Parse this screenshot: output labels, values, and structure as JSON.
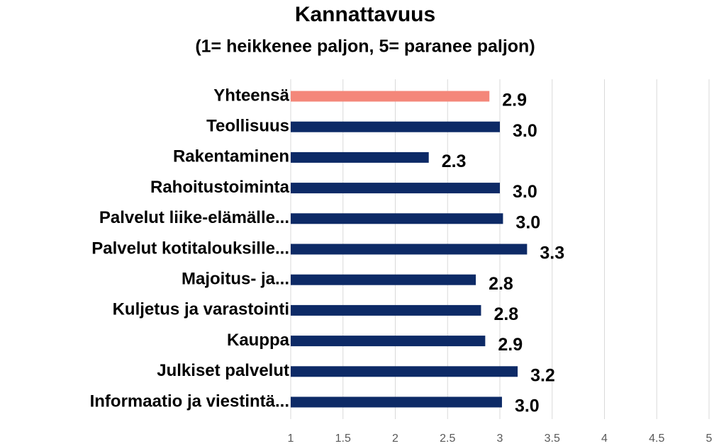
{
  "chart_data": {
    "type": "barh",
    "title": "Kannattavuus",
    "subtitle": "(1= heikkenee paljon, 5= paranee paljon)",
    "categories": [
      "Yhteensä",
      "Teollisuus",
      "Rakentaminen",
      "Rahoitustoiminta",
      "Palvelut liike-elämälle...",
      "Palvelut kotitalouksille...",
      "Majoitus- ja...",
      "Kuljetus ja varastointi",
      "Kauppa",
      "Julkiset palvelut",
      "Informaatio ja viestintä..."
    ],
    "values": [
      2.9,
      3.0,
      2.32,
      3.0,
      3.03,
      3.26,
      2.77,
      2.82,
      2.86,
      3.17,
      3.02
    ],
    "value_labels": [
      "2.9",
      "3.0",
      "2.3",
      "3.0",
      "3.0",
      "3.3",
      "2.8",
      "2.8",
      "2.9",
      "3.2",
      "3.0"
    ],
    "colors": [
      "#f4877a",
      "#0d2a66",
      "#0d2a66",
      "#0d2a66",
      "#0d2a66",
      "#0d2a66",
      "#0d2a66",
      "#0d2a66",
      "#0d2a66",
      "#0d2a66",
      "#0d2a66"
    ],
    "xlim": [
      1,
      5
    ],
    "xticks": [
      1,
      1.5,
      2,
      2.5,
      3,
      3.5,
      4,
      4.5,
      5
    ],
    "grid": true
  }
}
